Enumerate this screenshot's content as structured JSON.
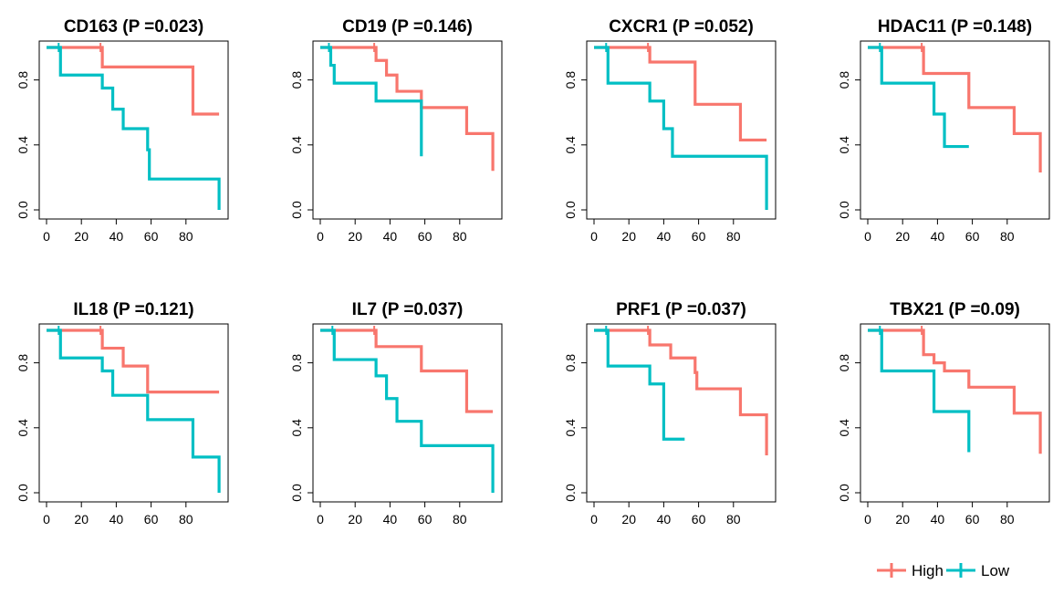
{
  "colors": {
    "High": "#F8766D",
    "Low": "#00BFC4"
  },
  "legend": {
    "placement": "bottom-right",
    "entries": [
      "High",
      "Low"
    ]
  },
  "chart_data": [
    {
      "type": "line",
      "title": "CD163 (P =0.023)",
      "x_ticks": [
        "0",
        "20",
        "40",
        "60",
        "80"
      ],
      "y_ticks": [
        "0.0",
        "0.4",
        "0.8"
      ],
      "xlim": [
        0,
        100
      ],
      "ylim": [
        0,
        1
      ],
      "series": [
        {
          "name": "High",
          "x": [
            0,
            32,
            84,
            99
          ],
          "y": [
            1.0,
            0.88,
            0.59,
            0.59
          ]
        },
        {
          "name": "Low",
          "x": [
            0,
            8,
            32,
            38,
            44,
            58,
            59,
            99
          ],
          "y": [
            1.0,
            0.83,
            0.75,
            0.62,
            0.5,
            0.37,
            0.19,
            0.0
          ]
        }
      ]
    },
    {
      "type": "line",
      "title": "CD19 (P =0.146)",
      "x_ticks": [
        "0",
        "20",
        "40",
        "60",
        "80"
      ],
      "y_ticks": [
        "0.0",
        "0.4",
        "0.8"
      ],
      "xlim": [
        0,
        100
      ],
      "ylim": [
        0,
        1
      ],
      "series": [
        {
          "name": "High",
          "x": [
            0,
            32,
            38,
            44,
            58,
            84,
            99
          ],
          "y": [
            1.0,
            0.92,
            0.83,
            0.73,
            0.63,
            0.47,
            0.24
          ]
        },
        {
          "name": "Low",
          "x": [
            0,
            6,
            8,
            32,
            58
          ],
          "y": [
            1.0,
            0.89,
            0.78,
            0.67,
            0.33
          ]
        }
      ]
    },
    {
      "type": "line",
      "title": "CXCR1 (P =0.052)",
      "x_ticks": [
        "0",
        "20",
        "40",
        "60",
        "80"
      ],
      "y_ticks": [
        "0.0",
        "0.4",
        "0.8"
      ],
      "xlim": [
        0,
        100
      ],
      "ylim": [
        0,
        1
      ],
      "series": [
        {
          "name": "High",
          "x": [
            0,
            32,
            58,
            84,
            99
          ],
          "y": [
            1.0,
            0.91,
            0.65,
            0.43,
            0.43
          ]
        },
        {
          "name": "Low",
          "x": [
            0,
            8,
            32,
            40,
            45,
            99
          ],
          "y": [
            1.0,
            0.78,
            0.67,
            0.5,
            0.33,
            0.0
          ]
        }
      ]
    },
    {
      "type": "line",
      "title": "HDAC11 (P =0.148)",
      "x_ticks": [
        "0",
        "20",
        "40",
        "60",
        "80"
      ],
      "y_ticks": [
        "0.0",
        "0.4",
        "0.8"
      ],
      "xlim": [
        0,
        100
      ],
      "ylim": [
        0,
        1
      ],
      "series": [
        {
          "name": "High",
          "x": [
            0,
            32,
            58,
            84,
            99
          ],
          "y": [
            1.0,
            0.84,
            0.63,
            0.47,
            0.23
          ]
        },
        {
          "name": "Low",
          "x": [
            0,
            8,
            38,
            44,
            58
          ],
          "y": [
            1.0,
            0.78,
            0.59,
            0.39,
            0.39
          ]
        }
      ]
    },
    {
      "type": "line",
      "title": "IL18 (P =0.121)",
      "x_ticks": [
        "0",
        "20",
        "40",
        "60",
        "80"
      ],
      "y_ticks": [
        "0.0",
        "0.4",
        "0.8"
      ],
      "xlim": [
        0,
        100
      ],
      "ylim": [
        0,
        1
      ],
      "series": [
        {
          "name": "High",
          "x": [
            0,
            32,
            44,
            58,
            99
          ],
          "y": [
            1.0,
            0.89,
            0.78,
            0.62,
            0.62
          ]
        },
        {
          "name": "Low",
          "x": [
            0,
            8,
            32,
            38,
            58,
            84,
            99
          ],
          "y": [
            1.0,
            0.83,
            0.75,
            0.6,
            0.45,
            0.22,
            0.0
          ]
        }
      ]
    },
    {
      "type": "line",
      "title": "IL7 (P =0.037)",
      "x_ticks": [
        "0",
        "20",
        "40",
        "60",
        "80"
      ],
      "y_ticks": [
        "0.0",
        "0.4",
        "0.8"
      ],
      "xlim": [
        0,
        100
      ],
      "ylim": [
        0,
        1
      ],
      "series": [
        {
          "name": "High",
          "x": [
            0,
            32,
            58,
            84,
            99
          ],
          "y": [
            1.0,
            0.9,
            0.75,
            0.5,
            0.5
          ]
        },
        {
          "name": "Low",
          "x": [
            0,
            8,
            32,
            38,
            44,
            58,
            99
          ],
          "y": [
            1.0,
            0.82,
            0.72,
            0.58,
            0.44,
            0.29,
            0.0
          ]
        }
      ]
    },
    {
      "type": "line",
      "title": "PRF1 (P =0.037)",
      "x_ticks": [
        "0",
        "20",
        "40",
        "60",
        "80"
      ],
      "y_ticks": [
        "0.0",
        "0.4",
        "0.8"
      ],
      "xlim": [
        0,
        100
      ],
      "ylim": [
        0,
        1
      ],
      "series": [
        {
          "name": "High",
          "x": [
            0,
            32,
            44,
            58,
            59,
            84,
            99
          ],
          "y": [
            1.0,
            0.91,
            0.83,
            0.74,
            0.64,
            0.48,
            0.23
          ]
        },
        {
          "name": "Low",
          "x": [
            0,
            8,
            32,
            40,
            52
          ],
          "y": [
            1.0,
            0.78,
            0.67,
            0.33,
            0.33
          ]
        }
      ]
    },
    {
      "type": "line",
      "title": "TBX21 (P =0.09)",
      "x_ticks": [
        "0",
        "20",
        "40",
        "60",
        "80"
      ],
      "y_ticks": [
        "0.0",
        "0.4",
        "0.8"
      ],
      "xlim": [
        0,
        100
      ],
      "ylim": [
        0,
        1
      ],
      "series": [
        {
          "name": "High",
          "x": [
            0,
            32,
            38,
            44,
            58,
            84,
            99
          ],
          "y": [
            1.0,
            0.85,
            0.8,
            0.75,
            0.65,
            0.49,
            0.24
          ]
        },
        {
          "name": "Low",
          "x": [
            0,
            8,
            38,
            58
          ],
          "y": [
            1.0,
            0.75,
            0.5,
            0.25
          ]
        }
      ]
    }
  ]
}
